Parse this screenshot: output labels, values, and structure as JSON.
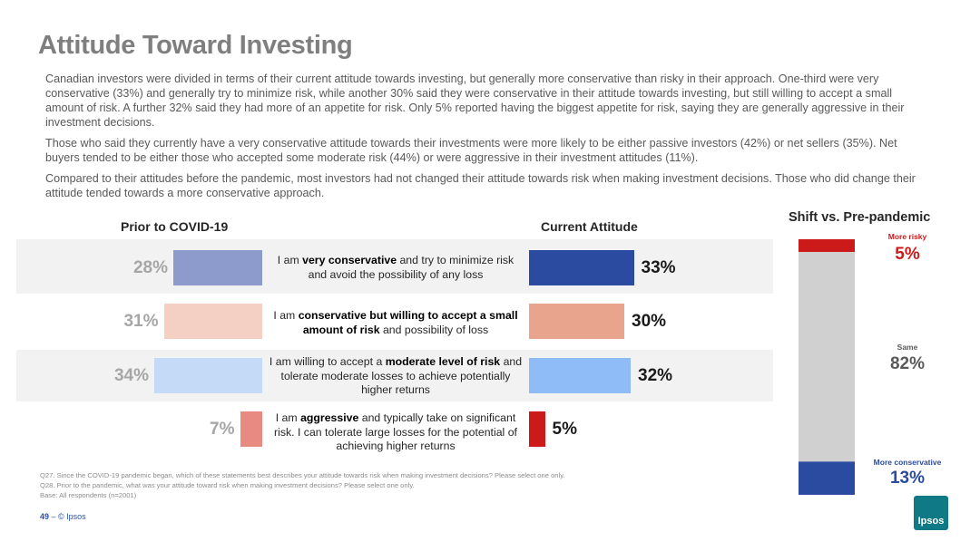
{
  "page": {
    "title": "Attitude Toward Investing",
    "paragraphs": [
      "Canadian investors were divided in terms of their current attitude towards investing, but generally more conservative than risky in their approach. One-third were very conservative (33%) and generally try to minimize risk, while another 30% said they were conservative in their attitude towards investing, but still willing to accept a small amount of risk. A further 32% said they had more of an appetite for risk. Only 5% reported having the biggest appetite for risk, saying they are generally aggressive in their investment decisions.",
      "Those who said they currently have a very conservative attitude towards their investments were more likely to be either passive investors (42%) or net sellers (35%). Net buyers tended to be either those who accepted some moderate risk (44%) or were aggressive in their investment attitudes (11%).",
      "Compared to their attitudes before the pandemic, most investors had not changed their attitude towards risk when making investment decisions. Those who did change their attitude tended towards a more conservative approach."
    ],
    "footnotes": [
      "Q27. Since the COVID-19 pandemic began, which of these statements best describes your attitude towards risk when making investment decisions? Please select one only.",
      "Q28. Prior to the pandemic, what was your attitude toward risk when making investment decisions? Please select one only.",
      "Base: All respondents (n=2001)"
    ],
    "page_number": "49",
    "copyright": "– © Ipsos",
    "logo_text": "Ipsos"
  },
  "chart_data": [
    {
      "type": "bar",
      "title": "Prior to COVID-19",
      "categories": [
        "I am very conservative and try to minimize risk and avoid the possibility of any loss",
        "I am conservative but willing to accept a small amount of risk and possibility of loss",
        "I am willing to accept a moderate level of risk and tolerate moderate losses to achieve potentially higher returns",
        "I am aggressive and typically take on significant risk. I can tolerate large losses for the potential of achieving higher returns"
      ],
      "values": [
        28,
        31,
        34,
        7
      ],
      "labels": [
        "28%",
        "31%",
        "34%",
        "7%"
      ],
      "colors": [
        "#8c9bcc",
        "#f4cfc4",
        "#c5daf7",
        "#e88a82"
      ],
      "orientation": "horizontal",
      "direction": "leftward"
    },
    {
      "type": "bar",
      "title": "Current Attitude",
      "categories": [
        "I am very conservative and try to minimize risk and avoid the possibility of any loss",
        "I am conservative but willing to accept a small amount of risk and possibility of loss",
        "I am willing to accept a moderate level of risk and tolerate moderate losses to achieve potentially higher returns",
        "I am aggressive and typically take on significant risk. I can tolerate large losses for the potential of achieving higher returns"
      ],
      "values": [
        33,
        30,
        32,
        5
      ],
      "labels": [
        "33%",
        "30%",
        "32%",
        "5%"
      ],
      "colors": [
        "#2b4ba0",
        "#e8a48c",
        "#8fbcf7",
        "#cc1a1a"
      ],
      "orientation": "horizontal",
      "direction": "rightward"
    },
    {
      "type": "bar",
      "title": "Shift vs. Pre-pandemic",
      "categories": [
        "More risky",
        "Same",
        "More conservative"
      ],
      "values": [
        5,
        82,
        13
      ],
      "labels": [
        "5%",
        "82%",
        "13%"
      ],
      "colors": [
        "#cc1a1a",
        "#d0d0d0",
        "#2b4ba0"
      ],
      "orientation": "vertical",
      "stacked": true
    }
  ],
  "statements": [
    {
      "pre": "I am ",
      "bold": "very conservative",
      "post": " and try to minimize risk and avoid the possibility of any loss"
    },
    {
      "pre": "I am ",
      "bold": "conservative but willing to accept a small amount of risk",
      "post": " and possibility of loss"
    },
    {
      "pre": "I am willing to accept a ",
      "bold": "moderate level of risk",
      "post": " and tolerate moderate losses to achieve potentially higher returns"
    },
    {
      "pre": "I am ",
      "bold": "aggressive",
      "post": " and typically take on significant risk. I can tolerate large losses for the potential of achieving higher returns"
    }
  ]
}
